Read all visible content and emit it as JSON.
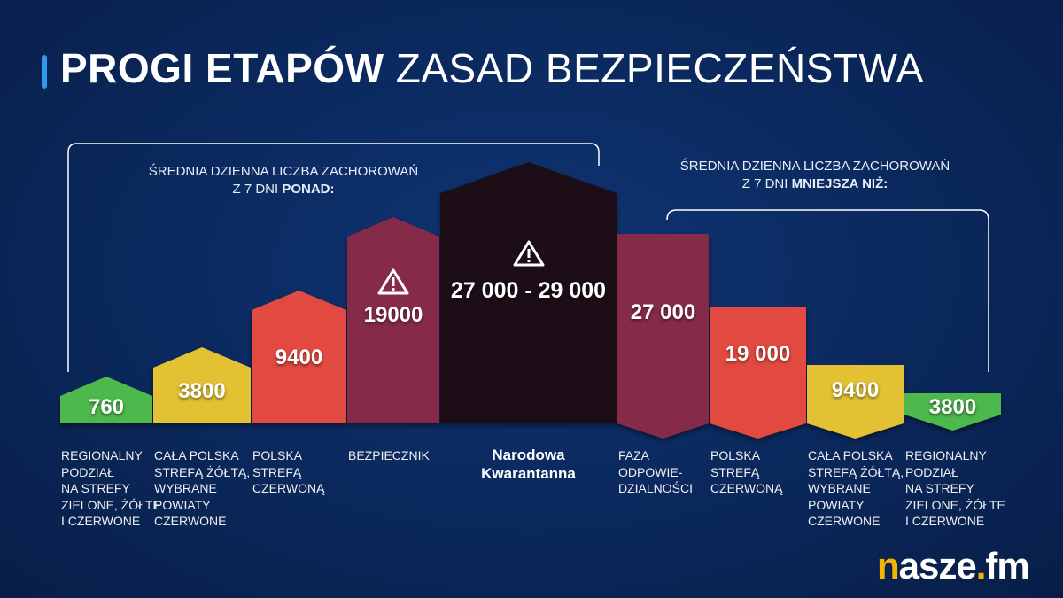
{
  "title": {
    "bold": "PROGI ETAPÓW",
    "light": "ZASAD BEZPIECZEŃSTWA"
  },
  "left_note": {
    "line1": "ŚREDNIA DZIENNA LICZBA ZACHOROWAŃ",
    "line2": "Z 7 DNI",
    "emph": "PONAD:"
  },
  "right_note": {
    "line1": "ŚREDNIA DZIENNA LICZBA ZACHOROWAŃ",
    "line2": "Z 7 DNI",
    "emph": "MNIEJSZA NIŻ:"
  },
  "colors": {
    "green": "#4db84b",
    "yellow": "#e2c231",
    "red": "#e24a41",
    "maroon": "#862a48",
    "black": "#1f0f15",
    "accent": "#2d9cf0",
    "logo": "#f5b400"
  },
  "stages": [
    {
      "value": "760",
      "label": [
        "Regionalny",
        "podział",
        "na strefy",
        "zielone, żółte",
        "i czerwone"
      ],
      "color": "green"
    },
    {
      "value": "3800",
      "label": [
        "Cała Polska",
        "strefą żółtą,",
        "wybrane",
        "powiaty",
        "czerwone"
      ],
      "color": "yellow"
    },
    {
      "value": "9400",
      "label": [
        "Polska",
        "strefą",
        "czerwoną"
      ],
      "color": "red"
    },
    {
      "value": "19000",
      "label": [
        "Bezpiecznik"
      ],
      "color": "maroon",
      "icon": "warning-icon"
    },
    {
      "value": "27 000 - 29 000",
      "label": [
        "Narodowa",
        "Kwarantanna"
      ],
      "color": "black",
      "icon": "warning-icon"
    },
    {
      "value": "27 000",
      "label": [
        "Faza",
        "odpowie-",
        "dzialności"
      ],
      "color": "maroon"
    },
    {
      "value": "19 000",
      "label": [
        "Polska",
        "strefą",
        "czerwoną"
      ],
      "color": "red"
    },
    {
      "value": "9400",
      "label": [
        "Cała Polska",
        "strefą żółtą,",
        "wybrane",
        "powiaty",
        "czerwone"
      ],
      "color": "yellow"
    },
    {
      "value": "3800",
      "label": [
        "Regionalny",
        "podział",
        "na strefy",
        "zielone, żółte",
        "i czerwone"
      ],
      "color": "green"
    }
  ],
  "logo": {
    "n": "n",
    "rest": "asze",
    "dot": ".",
    "fm": "fm"
  }
}
